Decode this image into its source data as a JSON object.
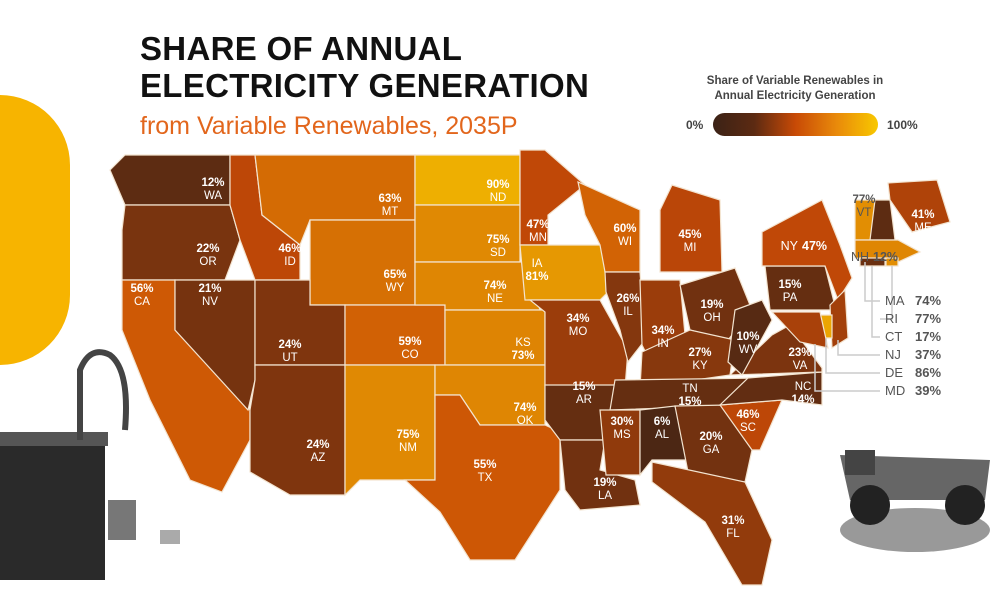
{
  "title": [
    "SHARE OF ANNUAL",
    "ELECTRICITY GENERATION"
  ],
  "subtitle": "from Variable Renewables, 2035P",
  "legend": {
    "title": [
      "Share of Variable Renewables in",
      "Annual Electricity Generation"
    ],
    "min_label": "0%",
    "max_label": "100%",
    "colors": [
      "#3b2216",
      "#c84a06",
      "#f8c800"
    ]
  },
  "states": [
    {
      "abbr": "WA",
      "value": "12%"
    },
    {
      "abbr": "OR",
      "value": "22%"
    },
    {
      "abbr": "CA",
      "value": "56%"
    },
    {
      "abbr": "NV",
      "value": "21%"
    },
    {
      "abbr": "ID",
      "value": "46%"
    },
    {
      "abbr": "MT",
      "value": "63%"
    },
    {
      "abbr": "WY",
      "value": "65%"
    },
    {
      "abbr": "UT",
      "value": "24%"
    },
    {
      "abbr": "AZ",
      "value": "24%"
    },
    {
      "abbr": "CO",
      "value": "59%"
    },
    {
      "abbr": "NM",
      "value": "75%"
    },
    {
      "abbr": "ND",
      "value": "90%"
    },
    {
      "abbr": "SD",
      "value": "75%"
    },
    {
      "abbr": "NE",
      "value": "74%"
    },
    {
      "abbr": "KS",
      "value": "73%"
    },
    {
      "abbr": "OK",
      "value": "74%"
    },
    {
      "abbr": "TX",
      "value": "55%"
    },
    {
      "abbr": "MN",
      "value": "47%"
    },
    {
      "abbr": "IA",
      "value": "81%"
    },
    {
      "abbr": "MO",
      "value": "34%"
    },
    {
      "abbr": "AR",
      "value": "15%"
    },
    {
      "abbr": "LA",
      "value": "19%"
    },
    {
      "abbr": "WI",
      "value": "60%"
    },
    {
      "abbr": "IL",
      "value": "26%"
    },
    {
      "abbr": "MI",
      "value": "45%"
    },
    {
      "abbr": "IN",
      "value": "34%"
    },
    {
      "abbr": "OH",
      "value": "19%"
    },
    {
      "abbr": "KY",
      "value": "27%"
    },
    {
      "abbr": "TN",
      "value": "15%"
    },
    {
      "abbr": "MS",
      "value": "30%"
    },
    {
      "abbr": "AL",
      "value": "6%"
    },
    {
      "abbr": "GA",
      "value": "20%"
    },
    {
      "abbr": "FL",
      "value": "31%"
    },
    {
      "abbr": "SC",
      "value": "46%"
    },
    {
      "abbr": "NC",
      "value": "14%"
    },
    {
      "abbr": "VA",
      "value": "23%"
    },
    {
      "abbr": "WV",
      "value": "10%"
    },
    {
      "abbr": "PA",
      "value": "15%"
    },
    {
      "abbr": "NY",
      "value": "47%"
    },
    {
      "abbr": "VT",
      "value": "77%"
    },
    {
      "abbr": "NH",
      "value": "12%"
    },
    {
      "abbr": "ME",
      "value": "41%"
    },
    {
      "abbr": "MA",
      "value": "74%"
    },
    {
      "abbr": "RI",
      "value": "77%"
    },
    {
      "abbr": "CT",
      "value": "17%"
    },
    {
      "abbr": "NJ",
      "value": "37%"
    },
    {
      "abbr": "DE",
      "value": "86%"
    },
    {
      "abbr": "MD",
      "value": "39%"
    }
  ]
}
